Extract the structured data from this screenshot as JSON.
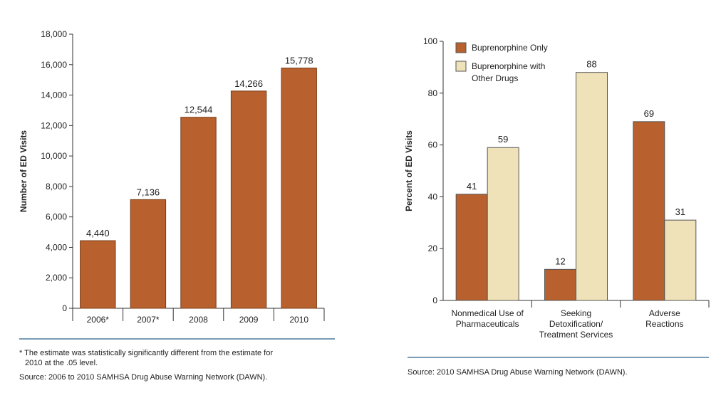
{
  "chart_data": [
    {
      "type": "bar",
      "title": "",
      "xlabel": "",
      "ylabel": "Number of ED Visits",
      "categories": [
        "2006*",
        "2007*",
        "2008",
        "2009",
        "2010"
      ],
      "values": [
        4440,
        7136,
        12544,
        14266,
        15778
      ],
      "value_labels": [
        "4,440",
        "7,136",
        "12,544",
        "14,266",
        "15,778"
      ],
      "yticks": [
        "0",
        "2,000",
        "4,000",
        "6,000",
        "8,000",
        "10,000",
        "12,000",
        "14,000",
        "16,000",
        "18,000"
      ],
      "ylim": [
        0,
        18000
      ],
      "grid": false,
      "colors": {
        "bar": "#b8612e",
        "bar_stroke": "#7a3d17"
      },
      "footnote": "* The estimate was statistically significantly different from the estimate for",
      "footnote2": "2010 at the .05 level.",
      "source": "Source: 2006 to 2010 SAMHSA Drug Abuse Warning Network (DAWN)."
    },
    {
      "type": "bar",
      "title": "",
      "xlabel": "",
      "ylabel": "Percent of ED Visits",
      "categories": [
        [
          "Nonmedical Use of",
          "Pharmaceuticals"
        ],
        [
          "Seeking",
          "Detoxification/",
          "Treatment Services"
        ],
        [
          "Adverse",
          "Reactions"
        ]
      ],
      "series": [
        {
          "name": "Buprenorphine Only",
          "values": [
            41,
            12,
            69
          ],
          "color": "#b8612e"
        },
        {
          "name": "Buprenorphine with Other Drugs",
          "legend_lines": [
            "Buprenorphine with",
            "Other Drugs"
          ],
          "values": [
            59,
            88,
            31
          ],
          "color": "#efe2b8"
        }
      ],
      "yticks": [
        "0",
        "20",
        "40",
        "60",
        "80",
        "100"
      ],
      "ylim": [
        0,
        100
      ],
      "legend_position": "top-left",
      "grid": false,
      "source": "Source: 2010 SAMHSA Drug Abuse Warning Network (DAWN)."
    }
  ],
  "colors": {
    "rule": "#7a9bb5",
    "axis": "#333333"
  }
}
